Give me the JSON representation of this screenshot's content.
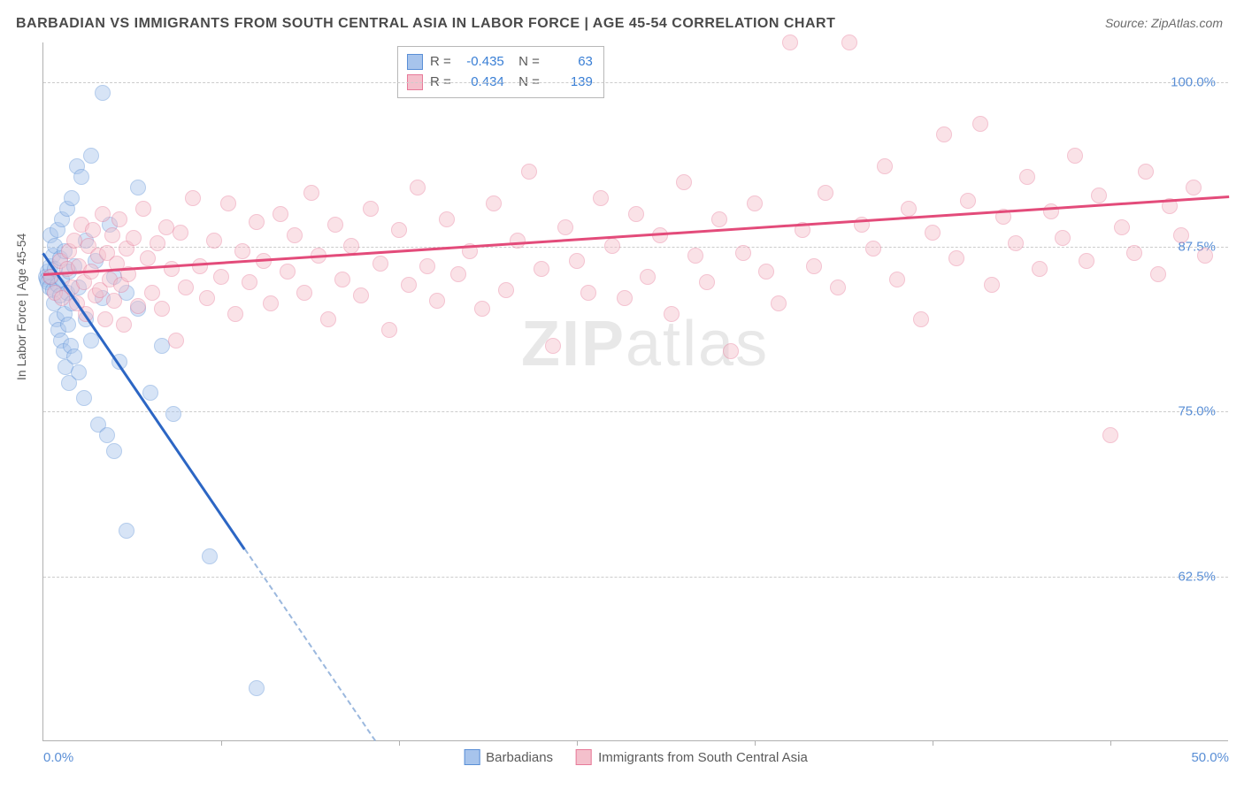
{
  "title": "BARBADIAN VS IMMIGRANTS FROM SOUTH CENTRAL ASIA IN LABOR FORCE | AGE 45-54 CORRELATION CHART",
  "source": "Source: ZipAtlas.com",
  "ylabel": "In Labor Force | Age 45-54",
  "watermark_bold": "ZIP",
  "watermark_rest": "atlas",
  "chart": {
    "type": "scatter",
    "xlim": [
      0,
      50
    ],
    "ylim": [
      50,
      103
    ],
    "xticks": [
      0,
      50
    ],
    "xtick_labels": [
      "0.0%",
      "50.0%"
    ],
    "xtick_minor": [
      7.5,
      15,
      22.5,
      30,
      37.5,
      45
    ],
    "yticks": [
      62.5,
      75,
      87.5,
      100
    ],
    "ytick_labels": [
      "62.5%",
      "75.0%",
      "87.5%",
      "100.0%"
    ],
    "background_color": "#ffffff",
    "grid_color": "#cccccc",
    "axis_color": "#b0b0b0",
    "marker_radius": 9,
    "marker_opacity": 0.45,
    "series": [
      {
        "name": "Barbadians",
        "color_fill": "#a7c4ec",
        "color_stroke": "#5a8fd6",
        "line_color": "#2c66c4",
        "R": "-0.435",
        "N": "63",
        "regression": {
          "x1": 0,
          "y1": 87.0,
          "x2": 14,
          "y2": 50,
          "solid_until_x": 8.5,
          "dash_color": "#9bb8de"
        },
        "points": [
          [
            0.1,
            85.2
          ],
          [
            0.15,
            85.0
          ],
          [
            0.2,
            84.8
          ],
          [
            0.2,
            85.6
          ],
          [
            0.25,
            84.4
          ],
          [
            0.3,
            86.0
          ],
          [
            0.3,
            88.4
          ],
          [
            0.35,
            85.2
          ],
          [
            0.4,
            84.2
          ],
          [
            0.4,
            86.8
          ],
          [
            0.45,
            83.2
          ],
          [
            0.5,
            85.8
          ],
          [
            0.5,
            87.6
          ],
          [
            0.55,
            82.0
          ],
          [
            0.6,
            84.6
          ],
          [
            0.6,
            88.8
          ],
          [
            0.65,
            81.2
          ],
          [
            0.7,
            83.8
          ],
          [
            0.7,
            86.6
          ],
          [
            0.75,
            80.4
          ],
          [
            0.8,
            85.0
          ],
          [
            0.8,
            89.6
          ],
          [
            0.85,
            79.6
          ],
          [
            0.9,
            82.4
          ],
          [
            0.9,
            87.2
          ],
          [
            0.95,
            78.4
          ],
          [
            1.0,
            84.0
          ],
          [
            1.0,
            90.4
          ],
          [
            1.05,
            81.6
          ],
          [
            1.1,
            77.2
          ],
          [
            1.1,
            85.6
          ],
          [
            1.15,
            80.0
          ],
          [
            1.2,
            83.2
          ],
          [
            1.2,
            91.2
          ],
          [
            1.3,
            79.2
          ],
          [
            1.3,
            86.0
          ],
          [
            1.4,
            93.6
          ],
          [
            1.5,
            78.0
          ],
          [
            1.5,
            84.4
          ],
          [
            1.6,
            92.8
          ],
          [
            1.7,
            76.0
          ],
          [
            1.8,
            82.0
          ],
          [
            1.8,
            88.0
          ],
          [
            2.0,
            94.4
          ],
          [
            2.0,
            80.4
          ],
          [
            2.2,
            86.4
          ],
          [
            2.3,
            74.0
          ],
          [
            2.5,
            99.2
          ],
          [
            2.5,
            83.6
          ],
          [
            2.7,
            73.2
          ],
          [
            2.8,
            89.2
          ],
          [
            3.0,
            72.0
          ],
          [
            3.0,
            85.2
          ],
          [
            3.2,
            78.8
          ],
          [
            3.5,
            84.0
          ],
          [
            3.5,
            66.0
          ],
          [
            4.0,
            82.8
          ],
          [
            4.0,
            92.0
          ],
          [
            4.5,
            76.4
          ],
          [
            5.0,
            80.0
          ],
          [
            5.5,
            74.8
          ],
          [
            7.0,
            64.0
          ],
          [
            9.0,
            54.0
          ]
        ]
      },
      {
        "name": "Immigrants from South Central Asia",
        "color_fill": "#f4c0cc",
        "color_stroke": "#e77a99",
        "line_color": "#e34b7a",
        "R": "0.434",
        "N": "139",
        "regression": {
          "x1": 0,
          "y1": 85.4,
          "x2": 50,
          "y2": 91.3,
          "solid_until_x": 50
        },
        "points": [
          [
            0.3,
            85.2
          ],
          [
            0.5,
            84.0
          ],
          [
            0.7,
            86.4
          ],
          [
            0.8,
            83.6
          ],
          [
            1.0,
            85.8
          ],
          [
            1.1,
            87.2
          ],
          [
            1.2,
            84.4
          ],
          [
            1.3,
            88.0
          ],
          [
            1.4,
            83.2
          ],
          [
            1.5,
            86.0
          ],
          [
            1.6,
            89.2
          ],
          [
            1.7,
            84.8
          ],
          [
            1.8,
            82.4
          ],
          [
            1.9,
            87.6
          ],
          [
            2.0,
            85.6
          ],
          [
            2.1,
            88.8
          ],
          [
            2.2,
            83.8
          ],
          [
            2.3,
            86.8
          ],
          [
            2.4,
            84.2
          ],
          [
            2.5,
            90.0
          ],
          [
            2.6,
            82.0
          ],
          [
            2.7,
            87.0
          ],
          [
            2.8,
            85.0
          ],
          [
            2.9,
            88.4
          ],
          [
            3.0,
            83.4
          ],
          [
            3.1,
            86.2
          ],
          [
            3.2,
            89.6
          ],
          [
            3.3,
            84.6
          ],
          [
            3.4,
            81.6
          ],
          [
            3.5,
            87.4
          ],
          [
            3.6,
            85.4
          ],
          [
            3.8,
            88.2
          ],
          [
            4.0,
            83.0
          ],
          [
            4.2,
            90.4
          ],
          [
            4.4,
            86.6
          ],
          [
            4.6,
            84.0
          ],
          [
            4.8,
            87.8
          ],
          [
            5.0,
            82.8
          ],
          [
            5.2,
            89.0
          ],
          [
            5.4,
            85.8
          ],
          [
            5.6,
            80.4
          ],
          [
            5.8,
            88.6
          ],
          [
            6.0,
            84.4
          ],
          [
            6.3,
            91.2
          ],
          [
            6.6,
            86.0
          ],
          [
            6.9,
            83.6
          ],
          [
            7.2,
            88.0
          ],
          [
            7.5,
            85.2
          ],
          [
            7.8,
            90.8
          ],
          [
            8.1,
            82.4
          ],
          [
            8.4,
            87.2
          ],
          [
            8.7,
            84.8
          ],
          [
            9.0,
            89.4
          ],
          [
            9.3,
            86.4
          ],
          [
            9.6,
            83.2
          ],
          [
            10.0,
            90.0
          ],
          [
            10.3,
            85.6
          ],
          [
            10.6,
            88.4
          ],
          [
            11.0,
            84.0
          ],
          [
            11.3,
            91.6
          ],
          [
            11.6,
            86.8
          ],
          [
            12.0,
            82.0
          ],
          [
            12.3,
            89.2
          ],
          [
            12.6,
            85.0
          ],
          [
            13.0,
            87.6
          ],
          [
            13.4,
            83.8
          ],
          [
            13.8,
            90.4
          ],
          [
            14.2,
            86.2
          ],
          [
            14.6,
            81.2
          ],
          [
            15.0,
            88.8
          ],
          [
            15.4,
            84.6
          ],
          [
            15.8,
            92.0
          ],
          [
            16.2,
            86.0
          ],
          [
            16.6,
            83.4
          ],
          [
            17.0,
            89.6
          ],
          [
            17.5,
            85.4
          ],
          [
            18.0,
            87.2
          ],
          [
            18.5,
            82.8
          ],
          [
            19.0,
            90.8
          ],
          [
            19.5,
            84.2
          ],
          [
            20.0,
            88.0
          ],
          [
            20.5,
            93.2
          ],
          [
            21.0,
            85.8
          ],
          [
            21.5,
            80.0
          ],
          [
            22.0,
            89.0
          ],
          [
            22.5,
            86.4
          ],
          [
            23.0,
            84.0
          ],
          [
            23.5,
            91.2
          ],
          [
            24.0,
            87.6
          ],
          [
            24.5,
            83.6
          ],
          [
            25.0,
            90.0
          ],
          [
            25.5,
            85.2
          ],
          [
            26.0,
            88.4
          ],
          [
            26.5,
            82.4
          ],
          [
            27.0,
            92.4
          ],
          [
            27.5,
            86.8
          ],
          [
            28.0,
            84.8
          ],
          [
            28.5,
            89.6
          ],
          [
            29.0,
            79.6
          ],
          [
            29.5,
            87.0
          ],
          [
            30.0,
            90.8
          ],
          [
            30.5,
            85.6
          ],
          [
            31.0,
            83.2
          ],
          [
            31.5,
            103.0
          ],
          [
            32.0,
            88.8
          ],
          [
            32.5,
            86.0
          ],
          [
            33.0,
            91.6
          ],
          [
            33.5,
            84.4
          ],
          [
            34.0,
            103.0
          ],
          [
            34.5,
            89.2
          ],
          [
            35.0,
            87.4
          ],
          [
            35.5,
            93.6
          ],
          [
            36.0,
            85.0
          ],
          [
            36.5,
            90.4
          ],
          [
            37.0,
            82.0
          ],
          [
            37.5,
            88.6
          ],
          [
            38.0,
            96.0
          ],
          [
            38.5,
            86.6
          ],
          [
            39.0,
            91.0
          ],
          [
            39.5,
            96.8
          ],
          [
            40.0,
            84.6
          ],
          [
            40.5,
            89.8
          ],
          [
            41.0,
            87.8
          ],
          [
            41.5,
            92.8
          ],
          [
            42.0,
            85.8
          ],
          [
            42.5,
            90.2
          ],
          [
            43.0,
            88.2
          ],
          [
            43.5,
            94.4
          ],
          [
            44.0,
            86.4
          ],
          [
            44.5,
            91.4
          ],
          [
            45.0,
            73.2
          ],
          [
            45.5,
            89.0
          ],
          [
            46.0,
            87.0
          ],
          [
            46.5,
            93.2
          ],
          [
            47.0,
            85.4
          ],
          [
            47.5,
            90.6
          ],
          [
            48.0,
            88.4
          ],
          [
            48.5,
            92.0
          ],
          [
            49.0,
            86.8
          ]
        ]
      }
    ]
  },
  "legend": {
    "series1": "Barbadians",
    "series2": "Immigrants from South Central Asia"
  }
}
